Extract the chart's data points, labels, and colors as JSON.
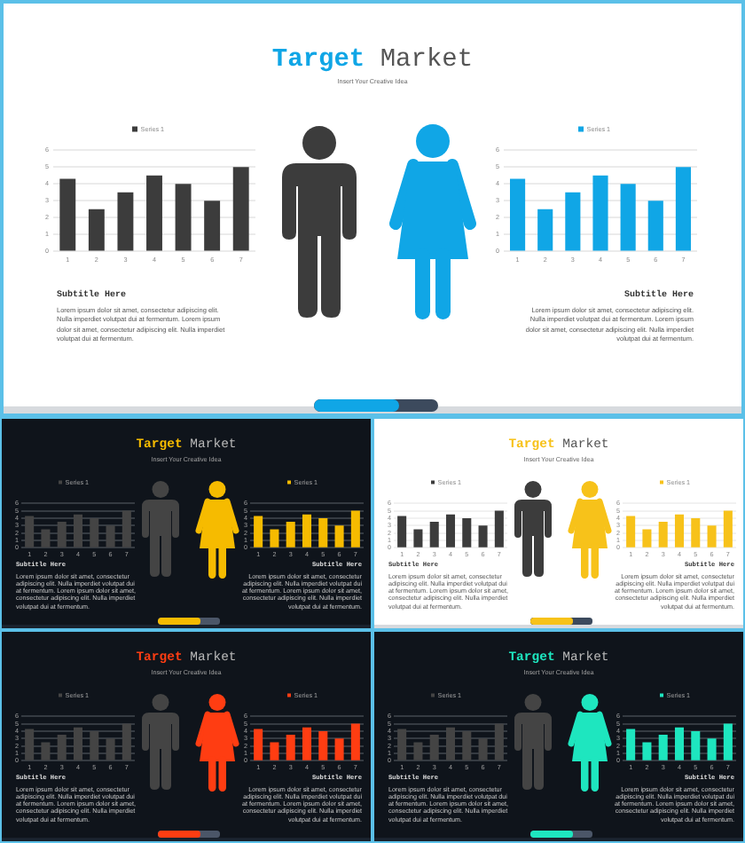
{
  "chart_data": [
    {
      "type": "other",
      "title": "Target Market",
      "subtitle": "Insert Your Creative Idea",
      "annotations": [
        "Subtitle Here",
        "Lorem ipsum dolor sit amet, consectetur adipiscing elit. Nulla imperdiet volutpat dui at fermentum. Lorem ipsum dolor sit amet, consectetur adipiscing elit. Nulla imperdiet volutpat dui at fermentum.",
        "Subtitle Here",
        "Lorem ipsum dolor sit amet, consectetur adipiscing elit. Nulla imperdiet volutpat dui at fermentum. Lorem ipsum dolor sit amet, consectetur adipiscing elit. Nulla imperdiet volutpat dui at fermentum."
      ]
    },
    {
      "type": "bar",
      "categories": [
        "1",
        "2",
        "3",
        "4",
        "5",
        "6",
        "7"
      ],
      "series": [
        {
          "name": "Series 1",
          "color": "#3c3c3c",
          "values": [
            4.3,
            2.5,
            3.5,
            4.5,
            4.0,
            3.0,
            5.0
          ]
        }
      ],
      "ylim": [
        0,
        6
      ],
      "yticks": [
        0,
        1,
        2,
        3,
        4,
        5,
        6
      ],
      "grid": "y",
      "legend": "top"
    },
    {
      "type": "bar",
      "categories": [
        "1",
        "2",
        "3",
        "4",
        "5",
        "6",
        "7"
      ],
      "series": [
        {
          "name": "Series 1",
          "color": "#10a6e6",
          "values": [
            4.3,
            2.5,
            3.5,
            4.5,
            4.0,
            3.0,
            5.0
          ]
        }
      ],
      "ylim": [
        0,
        6
      ],
      "yticks": [
        0,
        1,
        2,
        3,
        4,
        5,
        6
      ],
      "grid": "y",
      "legend": "top"
    },
    {
      "type": "other",
      "title": "Target Market",
      "subtitle": "Insert Your Creative Idea",
      "annotations": [
        "Subtitle Here",
        "Lorem ipsum dolor sit amet, consectetur adipiscing elit. Nulla imperdiet volutpat dui at fermentum. Lorem ipsum dolor sit amet, consectetur adipiscing elit. Nulla imperdiet volutpat dui at fermentum.",
        "Subtitle Here",
        "Lorem ipsum dolor sit amet, consectetur adipiscing elit. Nulla imperdiet volutpat dui at fermentum. Lorem ipsum dolor sit amet, consectetur adipiscing elit. Nulla imperdiet volutpat dui at fermentum."
      ]
    },
    {
      "type": "bar",
      "categories": [
        "1",
        "2",
        "3",
        "4",
        "5",
        "6",
        "7"
      ],
      "series": [
        {
          "name": "Series 1",
          "color": "#444444",
          "values": [
            4.3,
            2.5,
            3.5,
            4.5,
            4.0,
            3.0,
            5.0
          ]
        }
      ],
      "ylim": [
        0,
        6
      ],
      "yticks": [
        0,
        1,
        2,
        3,
        4,
        5,
        6
      ],
      "grid": "y",
      "legend": "top"
    },
    {
      "type": "bar",
      "categories": [
        "1",
        "2",
        "3",
        "4",
        "5",
        "6",
        "7"
      ],
      "series": [
        {
          "name": "Series 1",
          "color": "#f6bb00",
          "values": [
            4.3,
            2.5,
            3.5,
            4.5,
            4.0,
            3.0,
            5.0
          ]
        }
      ],
      "ylim": [
        0,
        6
      ],
      "yticks": [
        0,
        1,
        2,
        3,
        4,
        5,
        6
      ],
      "grid": "y",
      "legend": "top"
    },
    {
      "type": "other",
      "title": "Target Market",
      "subtitle": "Insert Your Creative Idea",
      "annotations": [
        "Subtitle Here",
        "Lorem ipsum dolor sit amet, consectetur adipiscing elit. Nulla imperdiet volutpat dui at fermentum. Lorem ipsum dolor sit amet, consectetur adipiscing elit. Nulla imperdiet volutpat dui at fermentum.",
        "Subtitle Here",
        "Lorem ipsum dolor sit amet, consectetur adipiscing elit. Nulla imperdiet volutpat dui at fermentum. Lorem ipsum dolor sit amet, consectetur adipiscing elit. Nulla imperdiet volutpat dui at fermentum."
      ]
    },
    {
      "type": "bar",
      "categories": [
        "1",
        "2",
        "3",
        "4",
        "5",
        "6",
        "7"
      ],
      "series": [
        {
          "name": "Series 1",
          "color": "#3c3c3c",
          "values": [
            4.3,
            2.5,
            3.5,
            4.5,
            4.0,
            3.0,
            5.0
          ]
        }
      ],
      "ylim": [
        0,
        6
      ],
      "yticks": [
        0,
        1,
        2,
        3,
        4,
        5,
        6
      ],
      "grid": "y",
      "legend": "top"
    },
    {
      "type": "bar",
      "categories": [
        "1",
        "2",
        "3",
        "4",
        "5",
        "6",
        "7"
      ],
      "series": [
        {
          "name": "Series 1",
          "color": "#f7c21a",
          "values": [
            4.3,
            2.5,
            3.5,
            4.5,
            4.0,
            3.0,
            5.0
          ]
        }
      ],
      "ylim": [
        0,
        6
      ],
      "yticks": [
        0,
        1,
        2,
        3,
        4,
        5,
        6
      ],
      "grid": "y",
      "legend": "top"
    },
    {
      "type": "other",
      "title": "Target Market",
      "subtitle": "Insert Your Creative Idea",
      "annotations": [
        "Subtitle Here",
        "Lorem ipsum dolor sit amet, consectetur adipiscing elit. Nulla imperdiet volutpat dui at fermentum. Lorem ipsum dolor sit amet, consectetur adipiscing elit. Nulla imperdiet volutpat dui at fermentum.",
        "Subtitle Here",
        "Lorem ipsum dolor sit amet, consectetur adipiscing elit. Nulla imperdiet volutpat dui at fermentum. Lorem ipsum dolor sit amet, consectetur adipiscing elit. Nulla imperdiet volutpat dui at fermentum."
      ]
    },
    {
      "type": "bar",
      "categories": [
        "1",
        "2",
        "3",
        "4",
        "5",
        "6",
        "7"
      ],
      "series": [
        {
          "name": "Series 1",
          "color": "#444444",
          "values": [
            4.3,
            2.5,
            3.5,
            4.5,
            4.0,
            3.0,
            5.0
          ]
        }
      ],
      "ylim": [
        0,
        6
      ],
      "yticks": [
        0,
        1,
        2,
        3,
        4,
        5,
        6
      ],
      "grid": "y",
      "legend": "top"
    },
    {
      "type": "bar",
      "categories": [
        "1",
        "2",
        "3",
        "4",
        "5",
        "6",
        "7"
      ],
      "series": [
        {
          "name": "Series 1",
          "color": "#ff3d12",
          "values": [
            4.3,
            2.5,
            3.5,
            4.5,
            4.0,
            3.0,
            5.0
          ]
        }
      ],
      "ylim": [
        0,
        6
      ],
      "yticks": [
        0,
        1,
        2,
        3,
        4,
        5,
        6
      ],
      "grid": "y",
      "legend": "top"
    },
    {
      "type": "other",
      "title": "Target Market",
      "subtitle": "Insert Your Creative Idea",
      "annotations": [
        "Subtitle Here",
        "Lorem ipsum dolor sit amet, consectetur adipiscing elit. Nulla imperdiet volutpat dui at fermentum. Lorem ipsum dolor sit amet, consectetur adipiscing elit. Nulla imperdiet volutpat dui at fermentum.",
        "Subtitle Here",
        "Lorem ipsum dolor sit amet, consectetur adipiscing elit. Nulla imperdiet volutpat dui at fermentum. Lorem ipsum dolor sit amet, consectetur adipiscing elit. Nulla imperdiet volutpat dui at fermentum."
      ]
    },
    {
      "type": "bar",
      "categories": [
        "1",
        "2",
        "3",
        "4",
        "5",
        "6",
        "7"
      ],
      "series": [
        {
          "name": "Series 1",
          "color": "#444444",
          "values": [
            4.3,
            2.5,
            3.5,
            4.5,
            4.0,
            3.0,
            5.0
          ]
        }
      ],
      "ylim": [
        0,
        6
      ],
      "yticks": [
        0,
        1,
        2,
        3,
        4,
        5,
        6
      ],
      "grid": "y",
      "legend": "top"
    },
    {
      "type": "bar",
      "categories": [
        "1",
        "2",
        "3",
        "4",
        "5",
        "6",
        "7"
      ],
      "series": [
        {
          "name": "Series 1",
          "color": "#1ee6bf",
          "values": [
            4.3,
            2.5,
            3.5,
            4.5,
            4.0,
            3.0,
            5.0
          ]
        }
      ],
      "ylim": [
        0,
        6
      ],
      "yticks": [
        0,
        1,
        2,
        3,
        4,
        5,
        6
      ],
      "grid": "y",
      "legend": "top"
    }
  ]
}
